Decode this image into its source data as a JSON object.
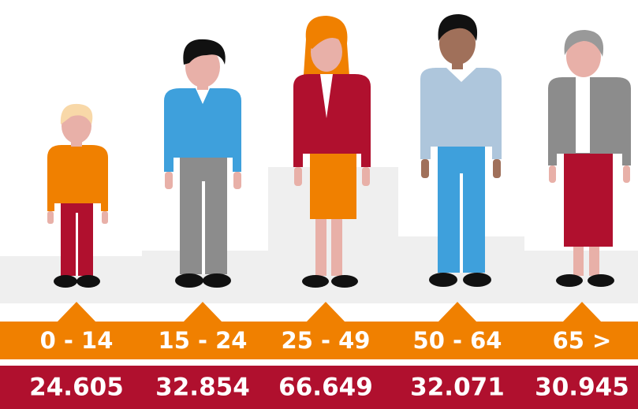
{
  "groups": [
    {
      "label": "0 - 14",
      "value": "24.605"
    },
    {
      "label": "15 - 24",
      "value": "32.854"
    },
    {
      "label": "25 - 49",
      "value": "66.649"
    },
    {
      "label": "50 - 64",
      "value": "32.071"
    },
    {
      "label": "65 >",
      "value": "30.945"
    }
  ]
}
